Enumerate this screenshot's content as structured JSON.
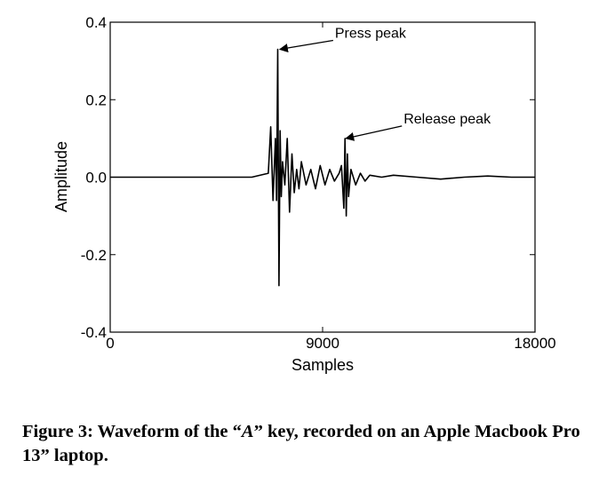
{
  "chart_data": {
    "type": "line",
    "xlabel": "Samples",
    "ylabel": "Amplitude",
    "xlim": [
      0,
      18000
    ],
    "ylim": [
      -0.4,
      0.4
    ],
    "xticks": [
      0,
      9000,
      18000
    ],
    "xtick_labels": [
      "0",
      "9000",
      "18000"
    ],
    "yticks": [
      0.4,
      0.2,
      0.0,
      -0.2,
      -0.4
    ],
    "ytick_labels": [
      "0.4",
      "0.2",
      "0.0",
      "-0.2",
      "-0.4"
    ],
    "grid": false,
    "series": [
      {
        "x": [
          0,
          2000,
          4000,
          6000,
          6700,
          6800,
          6900,
          7000,
          7050,
          7100,
          7150,
          7200,
          7250,
          7300,
          7400,
          7500,
          7600,
          7700,
          7800,
          7900,
          8000,
          8100,
          8300,
          8500,
          8700,
          8900,
          9100,
          9300,
          9500,
          9700,
          9800,
          9900,
          9950,
          10000,
          10050,
          10100,
          10200,
          10400,
          10600,
          10800,
          11000,
          11500,
          12000,
          13000,
          14000,
          15000,
          16000,
          17000,
          18000
        ],
        "y": [
          0.0,
          0.0,
          0.0,
          0.0,
          0.01,
          0.13,
          -0.06,
          0.1,
          -0.06,
          0.33,
          -0.28,
          0.12,
          -0.05,
          0.04,
          -0.02,
          0.1,
          -0.09,
          0.06,
          -0.04,
          0.02,
          -0.03,
          0.04,
          -0.02,
          0.02,
          -0.03,
          0.03,
          -0.02,
          0.02,
          -0.01,
          0.01,
          0.03,
          -0.08,
          0.1,
          -0.1,
          0.06,
          -0.05,
          0.02,
          -0.02,
          0.01,
          -0.01,
          0.005,
          0.0,
          0.005,
          0.0,
          -0.005,
          0.0,
          0.003,
          0.0,
          0.0
        ]
      }
    ],
    "annotations": [
      {
        "text": "Press peak",
        "x": 7150,
        "y": 0.33
      },
      {
        "text": "Release peak",
        "x": 9950,
        "y": 0.1
      }
    ]
  },
  "caption": {
    "prefix": "Figure 3: Waveform of the “",
    "key": "A",
    "suffix": "” key, recorded on an Apple Macbook Pro 13” laptop."
  }
}
